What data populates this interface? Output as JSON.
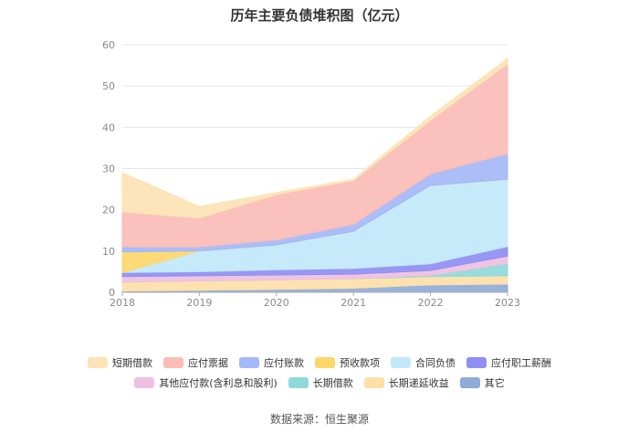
{
  "chart_data": {
    "type": "area",
    "stacked": true,
    "title": "历年主要负债堆积图（亿元）",
    "x": [
      "2018",
      "2019",
      "2020",
      "2021",
      "2022",
      "2023"
    ],
    "ylim": [
      0,
      60
    ],
    "yticks": [
      0,
      10,
      20,
      30,
      40,
      50,
      60
    ],
    "grid": true,
    "legend_position": "bottom",
    "series": [
      {
        "name": "其它",
        "color": "#8fabd8",
        "values": [
          0.3,
          0.5,
          0.7,
          1.0,
          1.8,
          2.0
        ]
      },
      {
        "name": "长期递延收益",
        "color": "#fde0a8",
        "values": [
          2.2,
          2.3,
          2.3,
          2.3,
          2.0,
          2.0
        ]
      },
      {
        "name": "长期借款",
        "color": "#8fd9d9",
        "values": [
          0,
          0,
          0,
          0,
          0.3,
          3.0
        ]
      },
      {
        "name": "其他应付款(含利息和股利)",
        "color": "#eec0e0",
        "values": [
          1.3,
          1.2,
          1.2,
          1.1,
          1.2,
          1.8
        ]
      },
      {
        "name": "应付职工薪酬",
        "color": "#8f8ef2",
        "values": [
          1.0,
          1.0,
          1.3,
          1.4,
          1.6,
          2.3
        ]
      },
      {
        "name": "合同负债",
        "color": "#c2e8fb",
        "values": [
          0,
          5.0,
          6.0,
          9.0,
          19.0,
          16.3
        ]
      },
      {
        "name": "预收款项",
        "color": "#fdd76a",
        "values": [
          5.0,
          0,
          0,
          0,
          0,
          0
        ]
      },
      {
        "name": "应付账款",
        "color": "#a4b8f7",
        "values": [
          1.2,
          1.0,
          1.2,
          1.7,
          2.8,
          6.2
        ]
      },
      {
        "name": "应付票据",
        "color": "#fbbcb6",
        "values": [
          8.5,
          7.0,
          11.0,
          10.6,
          13.0,
          21.8
        ]
      },
      {
        "name": "短期借款",
        "color": "#fde3b5",
        "values": [
          9.5,
          2.8,
          0.5,
          0.3,
          1.0,
          1.3
        ]
      }
    ],
    "legend_order": [
      "短期借款",
      "应付票据",
      "应付账款",
      "预收款项",
      "合同负债",
      "应付职工薪酬",
      "其他应付款(含利息和股利)",
      "长期借款",
      "长期递延收益",
      "其它"
    ],
    "source": "数据来源：恒生聚源"
  }
}
